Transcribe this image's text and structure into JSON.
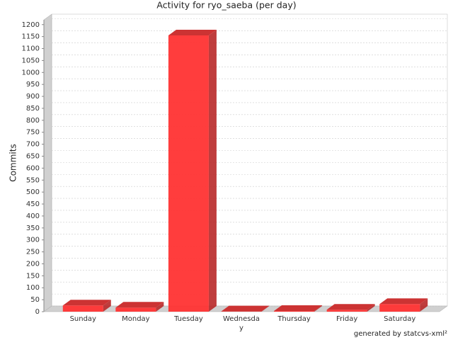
{
  "chart_data": {
    "type": "bar3d",
    "title": "Activity for ryo_saeba (per day)",
    "y_label": "Commits",
    "categories": [
      "Sunday",
      "Monday",
      "Tuesday",
      "Wednesday",
      "Thursday",
      "Friday",
      "Saturday"
    ],
    "values": [
      26,
      17,
      1155,
      1,
      3,
      8,
      32
    ],
    "color": "#ff3333",
    "ylim": [
      0,
      1220
    ],
    "yticks": [
      0,
      50,
      100,
      150,
      200,
      250,
      300,
      350,
      400,
      450,
      500,
      550,
      600,
      650,
      700,
      750,
      800,
      850,
      900,
      950,
      1000,
      1050,
      1100,
      1150,
      1200
    ],
    "grid": true,
    "footer": "generated by statcvs-xml²"
  }
}
